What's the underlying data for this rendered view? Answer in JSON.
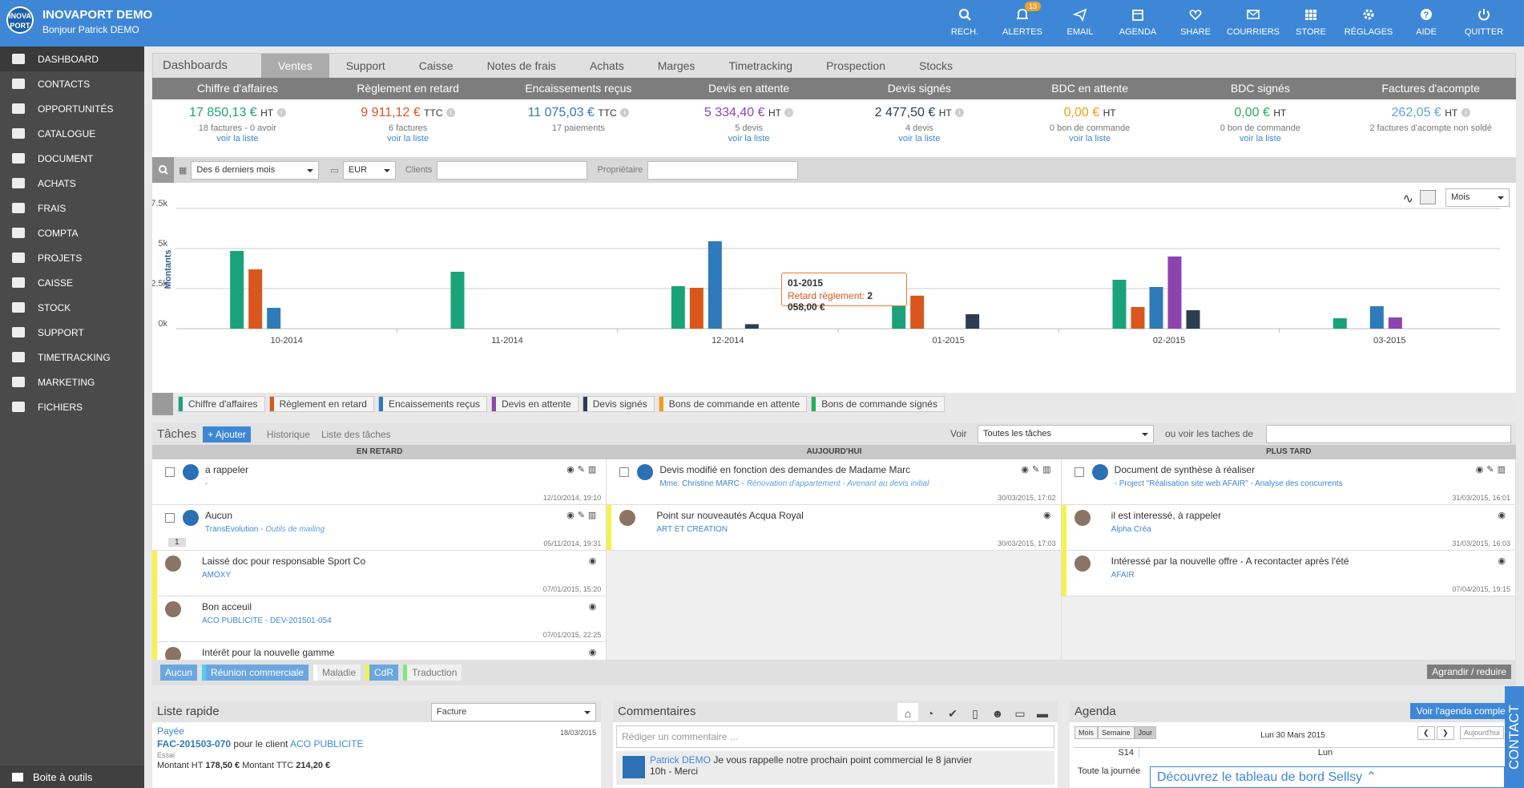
{
  "app": {
    "title": "INOVAPORT DEMO",
    "subtitle": "Bonjour Patrick DEMO",
    "logo_text": "INOVA PORT"
  },
  "topnav": [
    {
      "label": "RECH.",
      "icon": "search-icon"
    },
    {
      "label": "ALERTES",
      "icon": "bell-icon",
      "badge": "13"
    },
    {
      "label": "EMAIL",
      "icon": "paper-plane-icon"
    },
    {
      "label": "AGENDA",
      "icon": "calendar-icon"
    },
    {
      "label": "SHARE",
      "icon": "heart-icon"
    },
    {
      "label": "COURRIERS",
      "icon": "envelope-icon"
    },
    {
      "label": "STORE",
      "icon": "grid-icon"
    },
    {
      "label": "RÉGLAGES",
      "icon": "gear-icon"
    },
    {
      "label": "AIDE",
      "icon": "help-icon"
    },
    {
      "label": "QUITTER",
      "icon": "power-icon"
    }
  ],
  "sidebar": {
    "items": [
      "DASHBOARD",
      "CONTACTS",
      "OPPORTUNITÉS",
      "CATALOGUE",
      "DOCUMENT",
      "ACHATS",
      "FRAIS",
      "COMPTA",
      "PROJETS",
      "CAISSE",
      "STOCK",
      "SUPPORT",
      "TIMETRACKING",
      "MARKETING",
      "FICHIERS"
    ],
    "toolbox": "Boite à outils"
  },
  "tabs": [
    "Dashboards",
    "Ventes",
    "Support",
    "Caisse",
    "Notes de frais",
    "Achats",
    "Marges",
    "Timetracking",
    "Prospection",
    "Stocks"
  ],
  "kpis": [
    {
      "head": "Chiffre d'affaires",
      "value": "17 850,13 €",
      "unit": "HT",
      "color": "#1aa37a",
      "sub": "18 factures - 0 avoir",
      "link": "voir la liste"
    },
    {
      "head": "Règlement en retard",
      "value": "9 911,12 €",
      "unit": "TTC",
      "color": "#d9571c",
      "sub": "6 factures",
      "link": "voir la liste"
    },
    {
      "head": "Encaissements reçus",
      "value": "11 075,03 €",
      "unit": "TTC",
      "color": "#2f7ab8",
      "sub": "17 paiements",
      "link": ""
    },
    {
      "head": "Devis en attente",
      "value": "5 334,40 €",
      "unit": "HT",
      "color": "#8e44ad",
      "sub": "5 devis",
      "link": "voir la liste"
    },
    {
      "head": "Devis signés",
      "value": "2 477,50 €",
      "unit": "HT",
      "color": "#2c3e50",
      "sub": "4 devis",
      "link": "voir la liste"
    },
    {
      "head": "BDC en attente",
      "value": "0,00 €",
      "unit": "HT",
      "color": "#f39c12",
      "sub": "0 bon de commande",
      "link": "voir la liste"
    },
    {
      "head": "BDC signés",
      "value": "0,00 €",
      "unit": "HT",
      "color": "#27ae60",
      "sub": "0 bon de commande",
      "link": "voir la liste"
    },
    {
      "head": "Factures d'acompte",
      "value": "262,05 €",
      "unit": "HT",
      "color": "#5aa9d6",
      "sub": "2 factures d'acompte non soldé",
      "link": ""
    }
  ],
  "filters": {
    "period": "Des 6 derniers mois",
    "currency": "EUR",
    "clients_label": "Clients",
    "owner_label": "Propriétaire",
    "granularity": "Mois"
  },
  "chart_data": {
    "type": "bar",
    "ylabel": "Montants",
    "yticks": [
      "7.5k",
      "5k",
      "2.5k",
      "0k"
    ],
    "ylim": [
      0,
      7500
    ],
    "categories": [
      "10-2014",
      "11-2014",
      "12-2014",
      "01-2015",
      "02-2015",
      "03-2015"
    ],
    "series": [
      {
        "name": "Chiffre d'affaires",
        "color": "#1aa37a",
        "values": [
          4850,
          3550,
          2650,
          2600,
          3050,
          650
        ]
      },
      {
        "name": "Règlement en retard",
        "color": "#d9571c",
        "values": [
          3700,
          0,
          2550,
          2058,
          1350,
          0
        ]
      },
      {
        "name": "Encaissements reçus",
        "color": "#2f7ab8",
        "values": [
          1300,
          0,
          5450,
          0,
          2600,
          1400
        ]
      },
      {
        "name": "Devis en attente",
        "color": "#8e44ad",
        "values": [
          0,
          0,
          0,
          0,
          4500,
          700
        ]
      },
      {
        "name": "Devis signés",
        "color": "#2c3e50",
        "values": [
          0,
          0,
          280,
          900,
          1150,
          0
        ]
      },
      {
        "name": "Bons de commande en attente",
        "color": "#f39c12",
        "values": [
          0,
          0,
          0,
          0,
          0,
          0
        ]
      },
      {
        "name": "Bons de commande signés",
        "color": "#27ae60",
        "values": [
          0,
          0,
          0,
          0,
          0,
          0
        ]
      }
    ],
    "tooltip": {
      "title": "01-2015",
      "label": "Retard règlement:",
      "value": "2 058,00 €"
    }
  },
  "tasks": {
    "title": "Tâches",
    "add": "+ Ajouter",
    "history": "Historique",
    "list": "Liste des tâches",
    "voir_label": "Voir",
    "voir_value": "Toutes les tâches",
    "other_label": "ou voir les taches de",
    "columns": [
      "EN RETARD",
      "AUJOURD'HUI",
      "PLUS TARD"
    ],
    "late": [
      {
        "title": "a rappeler",
        "sub": "-",
        "date": "12/10/2014, 19:10"
      },
      {
        "title": "Aucun",
        "sub": "TransEvolution - ",
        "sub2": "Outils de mailing",
        "date": "05/11/2014, 19:31",
        "comments": "1"
      },
      {
        "title": "Laissé doc pour responsable Sport Co",
        "sub": "AMOXY",
        "date": "07/01/2015, 15:20"
      },
      {
        "title": "Bon acceuil",
        "sub": "ACO PUBLICITE - DEV-201501-054",
        "date": "07/01/2015, 22:25"
      },
      {
        "title": "Intérêt pour la nouvelle gamme",
        "sub": "",
        "date": ""
      }
    ],
    "today": [
      {
        "title": "Devis modifié en fonction des demandes de Madame Marc",
        "sub": "Mme. Christine MARC - ",
        "sub2": "Rénovation d'appartement - Avenant au devis initial",
        "date": "30/03/2015, 17:02"
      },
      {
        "title": "Point sur nouveautés Acqua Royal",
        "sub": "ART ET CREATION",
        "date": "30/03/2015, 17:03"
      }
    ],
    "later": [
      {
        "title": "Document de synthèse à réaliser",
        "sub": "- Project \"Réalisation site web AFAIR\" - Analyse des concurrents",
        "date": "31/03/2015, 16:01"
      },
      {
        "title": "il est interessé, à rappeler",
        "sub": "Alpha Créa",
        "date": "31/03/2015, 16:03"
      },
      {
        "title": "Intéressé par la nouvelle offre - A recontacter après l'été",
        "sub": "AFAIR",
        "date": "07/04/2015, 19:15"
      }
    ],
    "categories": [
      {
        "label": "Aucun",
        "color": "#6aa6e0",
        "text": "#fff"
      },
      {
        "label": "Réunion commerciale",
        "color": "#6aa6e0",
        "text": "#fff"
      },
      {
        "label": "Maladie",
        "color": "#f0f0f0",
        "text": "#777"
      },
      {
        "label": "CdR",
        "color": "#6aa6e0",
        "text": "#fff"
      },
      {
        "label": "Traduction",
        "color": "#f0f0f0",
        "text": "#777"
      }
    ],
    "toggle": "Agrandir / reduire"
  },
  "quicklist": {
    "title": "Liste rapide",
    "select": "Facture",
    "status": "Payée",
    "date": "18/03/2015",
    "ref": "FAC-201503-070",
    "client_prefix": "pour le client",
    "client": "ACO PUBLICITE",
    "note": "Essai",
    "ht_label": "Montant HT",
    "ht": "178,50 €",
    "ttc_label": "Montant TTC",
    "ttc": "214,20 €"
  },
  "comments": {
    "title": "Commentaires",
    "placeholder": "Rédiger un commentaire ...",
    "author": "Patrick DEMO",
    "text": "Je vous rappelle notre prochain point commercial le 8 janvier",
    "time": "10h - Merci"
  },
  "agenda": {
    "title": "Agenda",
    "button": "Voir l'agenda complet",
    "views": [
      "Mois",
      "Semaine",
      "Jour"
    ],
    "date": "Lun 30 Mars 2015",
    "today": "Aujourd'hui",
    "week": "S14",
    "day": "Lun",
    "allday": "Toute la journée"
  },
  "discover": "Découvrez le tableau de bord Sellsy",
  "contact": "CONTACT"
}
